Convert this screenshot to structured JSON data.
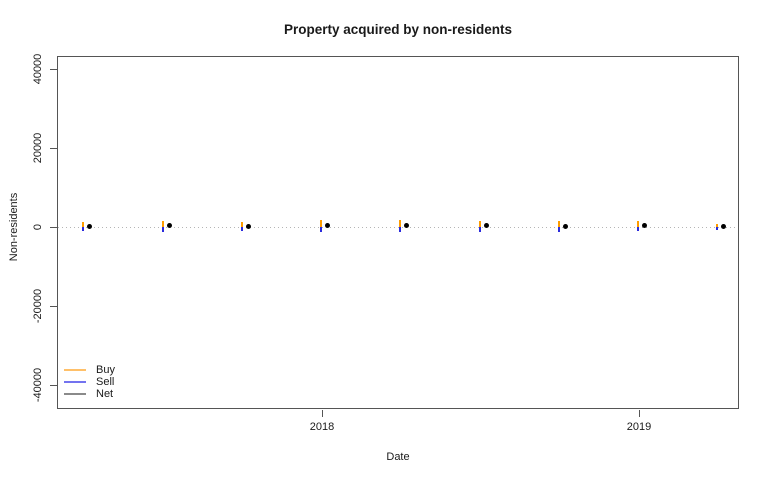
{
  "chart_data": {
    "type": "line",
    "title": "Property acquired by non-residents",
    "xlabel": "Date",
    "ylabel": "Non-residents",
    "x_ticks": [
      {
        "value": 2018,
        "label": "2018"
      },
      {
        "value": 2019,
        "label": "2019"
      }
    ],
    "y_ticks": [
      {
        "value": -40000,
        "label": "-40000"
      },
      {
        "value": -20000,
        "label": "-20000"
      },
      {
        "value": 0,
        "label": "0"
      },
      {
        "value": 20000,
        "label": "20000"
      },
      {
        "value": 40000,
        "label": "40000"
      }
    ],
    "xlim": [
      2017.16,
      2019.32
    ],
    "ylim": [
      -46000,
      43300
    ],
    "grid": false,
    "reference_line": {
      "value": 0,
      "style": "dotted",
      "color": "#b5b5b5"
    },
    "x": [
      2017.25,
      2017.5,
      2017.75,
      2018.0,
      2018.25,
      2018.5,
      2018.75,
      2019.0,
      2019.25
    ],
    "x_dates": [
      "2017-04",
      "2017-07",
      "2017-10",
      "2018-01",
      "2018-04",
      "2018-07",
      "2018-10",
      "2019-01",
      "2019-04"
    ],
    "series": [
      {
        "name": "Buy",
        "mark": "vertical-bar-up",
        "color": "#ff9d00",
        "values": [
          1300,
          1600,
          1300,
          1800,
          1800,
          1500,
          1400,
          1500,
          800
        ]
      },
      {
        "name": "Sell",
        "mark": "vertical-bar-down",
        "color": "#2b2bdc",
        "values": [
          -1100,
          -1200,
          -1100,
          -1300,
          -1300,
          -1200,
          -1200,
          -1100,
          -700
        ]
      },
      {
        "name": "Net",
        "mark": "point",
        "color": "#000000",
        "values": [
          200,
          400,
          200,
          500,
          500,
          300,
          200,
          400,
          100
        ]
      }
    ],
    "legend": {
      "position": "bottom-left",
      "entries": [
        {
          "label": "Buy",
          "line_color": "#ffc069"
        },
        {
          "label": "Sell",
          "line_color": "#7373ef"
        },
        {
          "label": "Net",
          "line_color": "#8a8a8a"
        }
      ]
    }
  }
}
